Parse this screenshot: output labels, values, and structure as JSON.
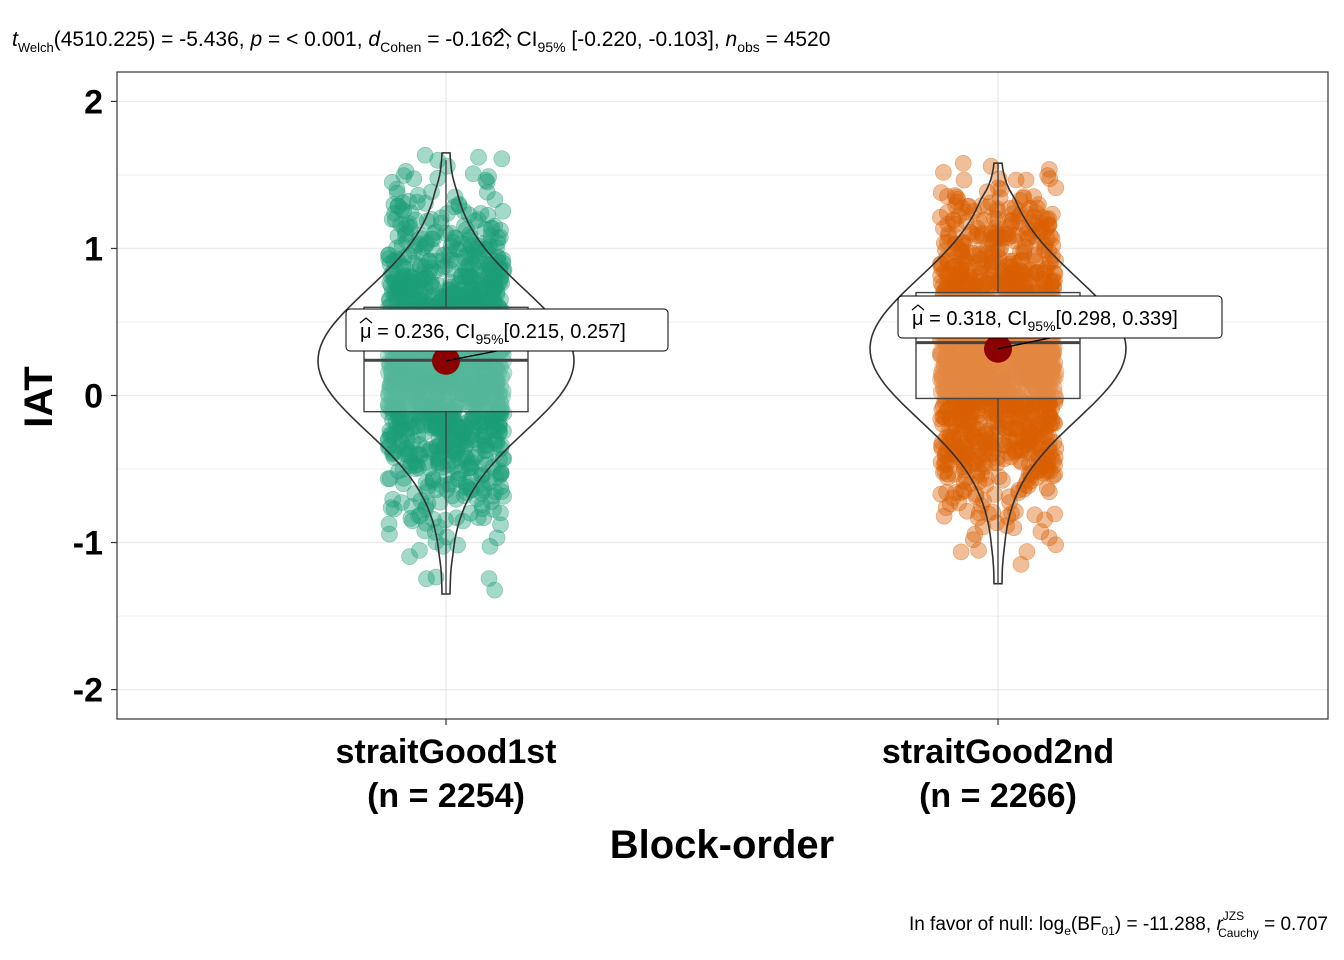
{
  "chart_data": {
    "type": "violin-box-scatter",
    "subtitle": {
      "stat_sym": "t",
      "stat_sub": "Welch",
      "stat_rest": "(4510.225) = -5.436, ",
      "p_sym": "p",
      "p_rest": " = < 0.001, ",
      "d_sym": "d",
      "d_sub": "Cohen",
      "d_rest": " = -0.162, CI",
      "ci_sub": "95%",
      "ci_rest": " [-0.220, -0.103], ",
      "n_sym": "n",
      "n_sub": "obs",
      "n_rest": " = 4520"
    },
    "caption": {
      "pre": "In favor of null: log",
      "log_sub": "e",
      "bf_pre": "(BF",
      "bf_sub": "01",
      "bf_post": ") = -11.288, ",
      "r_sym": "r",
      "r_sup": "JZS",
      "r_sub": "Cauchy",
      "r_post": " = 0.707"
    },
    "xlabel": "Block-order",
    "ylabel": "IAT",
    "ylim": [
      -2.2,
      2.2
    ],
    "yticks": [
      -2,
      -1,
      0,
      1,
      2
    ],
    "grid": true,
    "groups": [
      {
        "name": "straitGood1st",
        "n_label": "(n = 2254)",
        "n": 2254,
        "color": "#1B9E77",
        "mean": 0.236,
        "mean_label": " = 0.236, CI",
        "ci_sub": "95%",
        "ci_label": "[0.215, 0.257]",
        "box": {
          "q1": -0.11,
          "median": 0.24,
          "q3": 0.6,
          "whisker_low": -1.35,
          "whisker_high": 1.6
        },
        "range": [
          -1.35,
          1.65
        ]
      },
      {
        "name": "straitGood2nd",
        "n_label": "(n = 2266)",
        "n": 2266,
        "color": "#D95F02",
        "mean": 0.318,
        "mean_label": " = 0.318, CI",
        "ci_sub": "95%",
        "ci_label": "[0.298, 0.339]",
        "box": {
          "q1": -0.02,
          "median": 0.36,
          "q3": 0.7,
          "whisker_low": -1.28,
          "whisker_high": 1.58
        },
        "range": [
          -1.28,
          1.58
        ]
      }
    ]
  },
  "colors": {
    "mean_point": "#8B0000",
    "grid": "#e5e5e5",
    "axis": "#333333"
  }
}
